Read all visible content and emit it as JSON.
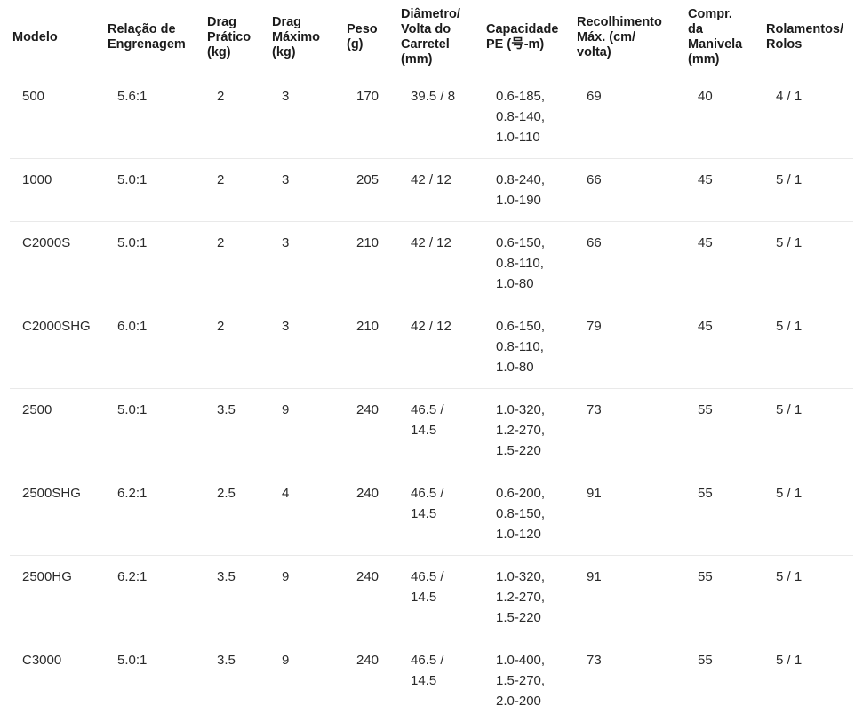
{
  "colors": {
    "divider": "#e9e9e9",
    "header_text": "#1b1b1b",
    "cell_text": "#2a2a2a",
    "background": "#ffffff"
  },
  "table": {
    "columns": [
      {
        "id": "modelo",
        "label": "Modelo"
      },
      {
        "id": "relacao-engrenagem",
        "label": "Relação de\nEngrenagem"
      },
      {
        "id": "drag-pratico",
        "label": "Drag\nPrático\n(kg)"
      },
      {
        "id": "drag-maximo",
        "label": "Drag\nMáximo\n(kg)"
      },
      {
        "id": "peso",
        "label": "Peso\n(g)"
      },
      {
        "id": "diametro-volta-carretel",
        "label": "Diâmetro/\nVolta do\nCarretel\n(mm)"
      },
      {
        "id": "capacidade-pe",
        "label": "Capacidade\nPE (号-m)"
      },
      {
        "id": "recolhimento-max",
        "label": "Recolhimento\nMáx. (cm/\nvolta)"
      },
      {
        "id": "compr-manivela",
        "label": "Compr.\nda\nManivela\n(mm)"
      },
      {
        "id": "rolamentos-rolos",
        "label": "Rolamentos/\nRolos"
      }
    ],
    "rows": [
      {
        "cells": [
          "500",
          "5.6:1",
          "2",
          "3",
          "170",
          "39.5 / 8",
          "0.6-185,\n0.8-140,\n1.0-110",
          "69",
          "40",
          "4 / 1"
        ]
      },
      {
        "cells": [
          "1000",
          "5.0:1",
          "2",
          "3",
          "205",
          "42 / 12",
          "0.8-240,\n1.0-190",
          "66",
          "45",
          "5 / 1"
        ]
      },
      {
        "cells": [
          "C2000S",
          "5.0:1",
          "2",
          "3",
          "210",
          "42 / 12",
          "0.6-150,\n0.8-110,\n1.0-80",
          "66",
          "45",
          "5 / 1"
        ]
      },
      {
        "cells": [
          "C2000SHG",
          "6.0:1",
          "2",
          "3",
          "210",
          "42 / 12",
          "0.6-150,\n0.8-110,\n1.0-80",
          "79",
          "45",
          "5 / 1"
        ]
      },
      {
        "cells": [
          "2500",
          "5.0:1",
          "3.5",
          "9",
          "240",
          "46.5 /\n14.5",
          "1.0-320,\n1.2-270,\n1.5-220",
          "73",
          "55",
          "5 / 1"
        ]
      },
      {
        "cells": [
          "2500SHG",
          "6.2:1",
          "2.5",
          "4",
          "240",
          "46.5 /\n14.5",
          "0.6-200,\n0.8-150,\n1.0-120",
          "91",
          "55",
          "5 / 1"
        ]
      },
      {
        "cells": [
          "2500HG",
          "6.2:1",
          "3.5",
          "9",
          "240",
          "46.5 /\n14.5",
          "1.0-320,\n1.2-270,\n1.5-220",
          "91",
          "55",
          "5 / 1"
        ]
      },
      {
        "cells": [
          "C3000",
          "5.0:1",
          "3.5",
          "9",
          "240",
          "46.5 /\n14.5",
          "1.0-400,\n1.5-270,\n2.0-200",
          "73",
          "55",
          "5 / 1"
        ]
      }
    ]
  }
}
